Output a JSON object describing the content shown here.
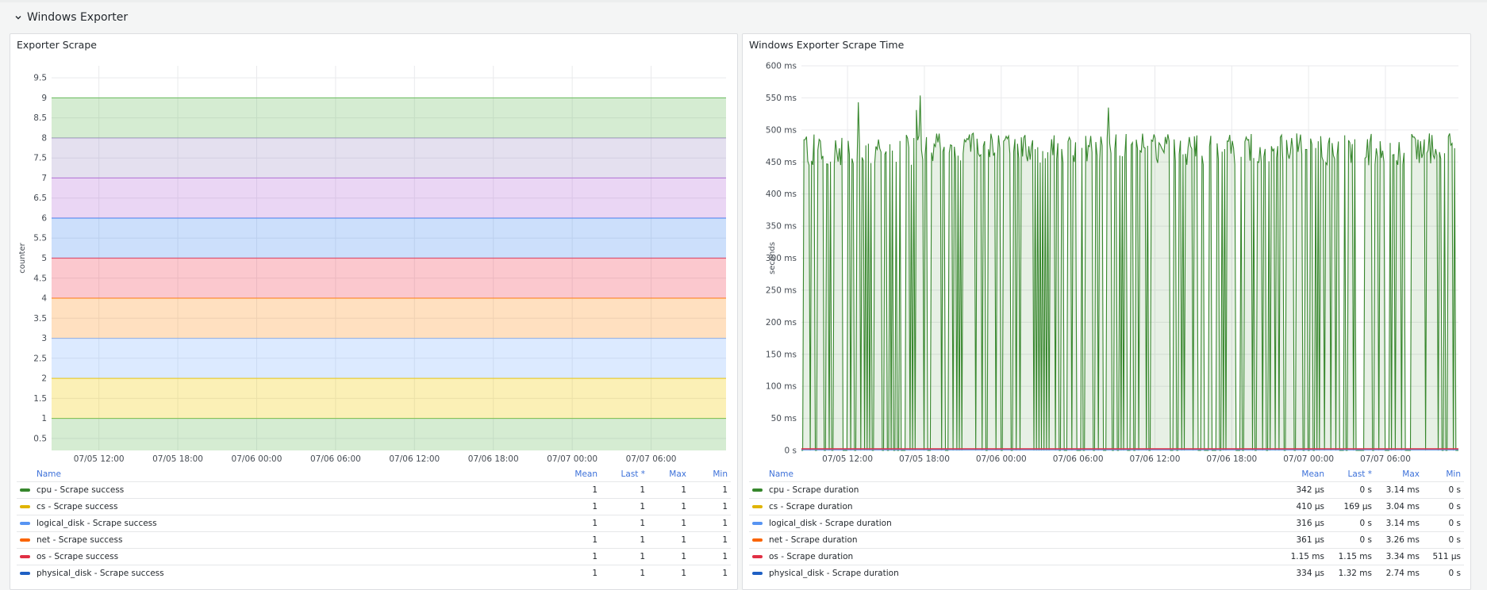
{
  "row": {
    "title": "Windows Exporter",
    "chevron_icon": "chevron-down-icon"
  },
  "panels": [
    {
      "title": "Exporter Scrape",
      "legend_headers": {
        "name": "Name",
        "mean": "Mean",
        "last": "Last *",
        "max": "Max",
        "min": "Min"
      },
      "legend": [
        {
          "name": "cpu - Scrape success",
          "color": "#37872d",
          "mean": "1",
          "last": "1",
          "max": "1",
          "min": "1"
        },
        {
          "name": "cs - Scrape success",
          "color": "#e0b400",
          "mean": "1",
          "last": "1",
          "max": "1",
          "min": "1"
        },
        {
          "name": "logical_disk - Scrape success",
          "color": "#5794f2",
          "mean": "1",
          "last": "1",
          "max": "1",
          "min": "1"
        },
        {
          "name": "net - Scrape success",
          "color": "#fa6400",
          "mean": "1",
          "last": "1",
          "max": "1",
          "min": "1"
        },
        {
          "name": "os - Scrape success",
          "color": "#e02f44",
          "mean": "1",
          "last": "1",
          "max": "1",
          "min": "1"
        },
        {
          "name": "physical_disk - Scrape success",
          "color": "#1f60c4",
          "mean": "1",
          "last": "1",
          "max": "1",
          "min": "1"
        }
      ]
    },
    {
      "title": "Windows Exporter Scrape Time",
      "legend_headers": {
        "name": "Name",
        "mean": "Mean",
        "last": "Last *",
        "max": "Max",
        "min": "Min"
      },
      "legend": [
        {
          "name": "cpu - Scrape duration",
          "color": "#37872d",
          "mean": "342 µs",
          "last": "0 s",
          "max": "3.14 ms",
          "min": "0 s"
        },
        {
          "name": "cs - Scrape duration",
          "color": "#e0b400",
          "mean": "410 µs",
          "last": "169 µs",
          "max": "3.04 ms",
          "min": "0 s"
        },
        {
          "name": "logical_disk - Scrape duration",
          "color": "#5794f2",
          "mean": "316 µs",
          "last": "0 s",
          "max": "3.14 ms",
          "min": "0 s"
        },
        {
          "name": "net - Scrape duration",
          "color": "#fa6400",
          "mean": "361 µs",
          "last": "0 s",
          "max": "3.26 ms",
          "min": "0 s"
        },
        {
          "name": "os - Scrape duration",
          "color": "#e02f44",
          "mean": "1.15 ms",
          "last": "1.15 ms",
          "max": "3.34 ms",
          "min": "511 µs"
        },
        {
          "name": "physical_disk - Scrape duration",
          "color": "#1f60c4",
          "mean": "334 µs",
          "last": "1.32 ms",
          "max": "2.74 ms",
          "min": "0 s"
        }
      ]
    }
  ],
  "chart_data": [
    {
      "type": "area",
      "stacked": true,
      "ylabel": "counter",
      "ylim": [
        0.2,
        9.8
      ],
      "yticks": [
        "0.5",
        "1",
        "1.5",
        "2",
        "2.5",
        "3",
        "3.5",
        "4",
        "4.5",
        "5",
        "5.5",
        "6",
        "6.5",
        "7",
        "7.5",
        "8",
        "8.5",
        "9",
        "9.5"
      ],
      "ytick_values": [
        0.5,
        1,
        1.5,
        2,
        2.5,
        3,
        3.5,
        4,
        4.5,
        5,
        5.5,
        6,
        6.5,
        7,
        7.5,
        8,
        8.5,
        9,
        9.5
      ],
      "xticks": [
        "07/05 12:00",
        "07/05 18:00",
        "07/06 00:00",
        "07/06 06:00",
        "07/06 12:00",
        "07/06 18:00",
        "07/07 00:00",
        "07/07 06:00"
      ],
      "grid": true,
      "legend_position": "bottom",
      "stack_bands": [
        {
          "color": "#73bf69",
          "value": 1
        },
        {
          "color": "#f2cc0c",
          "value": 1
        },
        {
          "color": "#8ab8ff",
          "value": 1
        },
        {
          "color": "#ff9830",
          "value": 1
        },
        {
          "color": "#f2495c",
          "value": 1
        },
        {
          "color": "#5794f2",
          "value": 1
        },
        {
          "color": "#b877d9",
          "value": 1
        },
        {
          "color": "#a799c9",
          "value": 1
        },
        {
          "color": "#73bf69",
          "value": 1
        }
      ]
    },
    {
      "type": "line",
      "ylabel": "seconds",
      "ylim": [
        0,
        0.6
      ],
      "yticks": [
        "0 s",
        "50 ms",
        "100 ms",
        "150 ms",
        "200 ms",
        "250 ms",
        "300 ms",
        "350 ms",
        "400 ms",
        "450 ms",
        "500 ms",
        "550 ms",
        "600 ms"
      ],
      "ytick_values": [
        0,
        0.05,
        0.1,
        0.15,
        0.2,
        0.25,
        0.3,
        0.35,
        0.4,
        0.45,
        0.5,
        0.55,
        0.6
      ],
      "xticks": [
        "07/05 12:00",
        "07/05 18:00",
        "07/06 00:00",
        "07/06 06:00",
        "07/06 12:00",
        "07/06 18:00",
        "07/07 00:00",
        "07/07 06:00"
      ],
      "grid": true,
      "legend_position": "bottom",
      "main_series": {
        "name": "",
        "color": "#37872d",
        "typical_value": 0.47,
        "peak_value": 0.558,
        "drop_value": 0
      },
      "baseline_series_colors": [
        "#5794f2",
        "#e02f44"
      ]
    }
  ]
}
